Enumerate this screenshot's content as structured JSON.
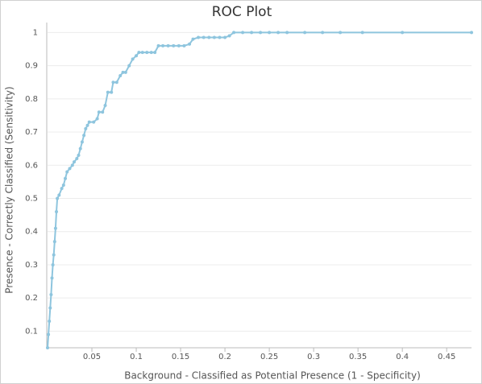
{
  "chart_data": {
    "type": "line",
    "title": "ROC Plot",
    "x_label": "Background - Classified as Potential Presence (1 - Specificity)",
    "y_label": "Presence - Correctly Classified (Sensitivity)",
    "color": "#8ec5de",
    "grid": true,
    "xlim": [
      0,
      0.478
    ],
    "ylim": [
      0.05,
      1.03
    ],
    "xticks": [
      0.05,
      0.1,
      0.15,
      0.2,
      0.25,
      0.3,
      0.35,
      0.4,
      0.45
    ],
    "yticks": [
      0.1,
      0.2,
      0.3,
      0.4,
      0.5,
      0.6,
      0.7,
      0.8,
      0.9,
      1
    ],
    "x": [
      0,
      0.001,
      0.002,
      0.003,
      0.004,
      0.005,
      0.006,
      0.007,
      0.008,
      0.009,
      0.01,
      0.011,
      0.013,
      0.016,
      0.018,
      0.02,
      0.022,
      0.025,
      0.028,
      0.03,
      0.033,
      0.035,
      0.037,
      0.039,
      0.041,
      0.043,
      0.045,
      0.047,
      0.052,
      0.056,
      0.058,
      0.062,
      0.065,
      0.068,
      0.072,
      0.074,
      0.078,
      0.082,
      0.085,
      0.088,
      0.092,
      0.096,
      0.1,
      0.103,
      0.107,
      0.112,
      0.117,
      0.121,
      0.125,
      0.13,
      0.136,
      0.142,
      0.148,
      0.154,
      0.16,
      0.164,
      0.17,
      0.176,
      0.182,
      0.188,
      0.194,
      0.2,
      0.205,
      0.21,
      0.22,
      0.23,
      0.24,
      0.25,
      0.26,
      0.27,
      0.29,
      0.31,
      0.33,
      0.355,
      0.4,
      0.478
    ],
    "values": [
      0.05,
      0.09,
      0.13,
      0.17,
      0.21,
      0.26,
      0.3,
      0.33,
      0.37,
      0.41,
      0.46,
      0.5,
      0.51,
      0.53,
      0.54,
      0.56,
      0.58,
      0.59,
      0.6,
      0.61,
      0.62,
      0.63,
      0.65,
      0.67,
      0.69,
      0.71,
      0.72,
      0.73,
      0.73,
      0.74,
      0.76,
      0.76,
      0.78,
      0.82,
      0.82,
      0.85,
      0.85,
      0.87,
      0.88,
      0.88,
      0.9,
      0.92,
      0.93,
      0.94,
      0.94,
      0.94,
      0.94,
      0.94,
      0.96,
      0.96,
      0.96,
      0.96,
      0.96,
      0.96,
      0.965,
      0.98,
      0.985,
      0.985,
      0.985,
      0.985,
      0.985,
      0.985,
      0.99,
      1,
      1,
      1,
      1,
      1,
      1,
      1,
      1,
      1,
      1,
      1,
      1,
      1
    ]
  }
}
